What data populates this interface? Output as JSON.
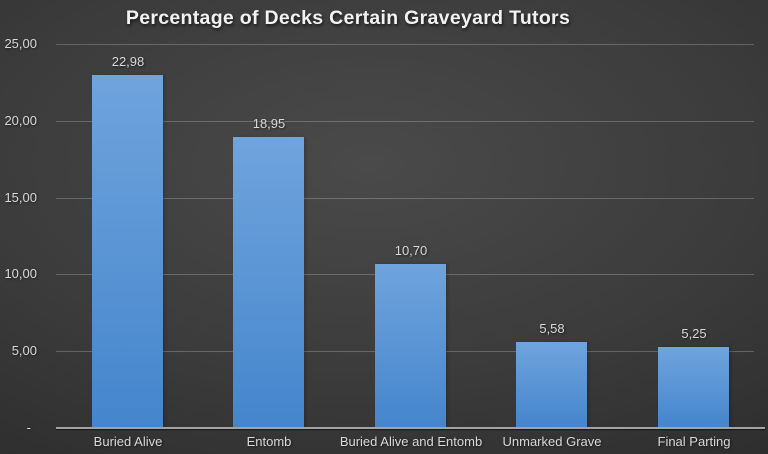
{
  "chart_data": {
    "type": "bar",
    "title": "Percentage of Decks Certain Graveyard Tutors",
    "categories": [
      "Buried Alive",
      "Entomb",
      "Buried Alive and Entomb",
      "Unmarked Grave",
      "Final Parting"
    ],
    "values": [
      22.98,
      18.95,
      10.7,
      5.58,
      5.25
    ],
    "value_labels": [
      "22,98",
      "18,95",
      "10,70",
      "5,58",
      "5,25"
    ],
    "xlabel": "",
    "ylabel": "",
    "ylim": [
      0,
      25
    ],
    "y_ticks": [
      {
        "value": 25,
        "label": "25,00"
      },
      {
        "value": 20,
        "label": "20,00"
      },
      {
        "value": 15,
        "label": "15,00"
      },
      {
        "value": 10,
        "label": "10,00"
      },
      {
        "value": 5,
        "label": "5,00"
      },
      {
        "value": 0,
        "label": "-"
      }
    ],
    "grid": true,
    "legend": "none",
    "decimal_separator": "comma"
  },
  "colors": {
    "bar_gradient_top": "#6FA4DD",
    "bar_gradient_bottom": "#4585CC",
    "background_center": "#4a4a4a",
    "background_mid": "#3b3b3b",
    "background_edge": "#262626",
    "title_text": "#f2f2f2",
    "label_text": "#d9d9d9",
    "gridline": "rgba(255,255,255,0.22)",
    "axis_line": "#a3a3a3"
  }
}
